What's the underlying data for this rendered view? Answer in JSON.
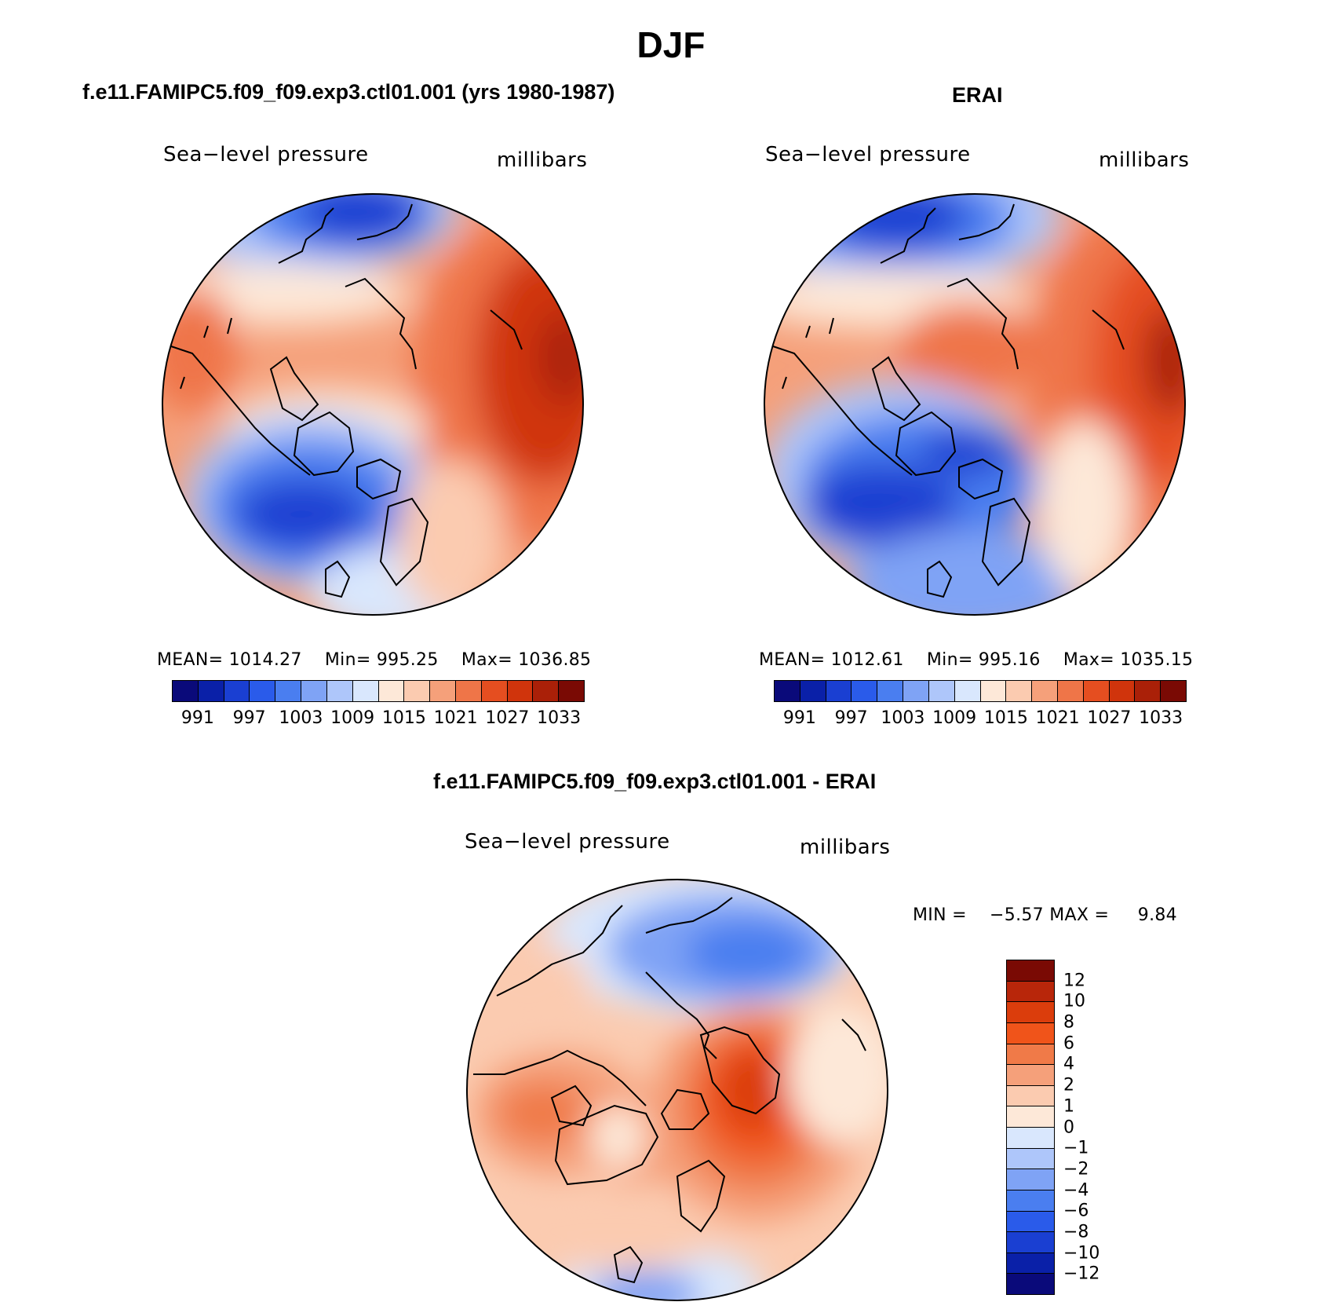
{
  "figure": {
    "title": "DJF"
  },
  "panels": {
    "model": {
      "title": "f.e11.FAMIPC5.f09_f09.exp3.ctl01.001 (yrs 1980-1987)",
      "variable": "Sea−level pressure",
      "units": "millibars",
      "stats": {
        "mean_label": "MEAN=",
        "mean": "1014.27",
        "min_label": "Min=",
        "min": "995.25",
        "max_label": "Max=",
        "max": "1036.85"
      }
    },
    "obs": {
      "title": "ERAI",
      "variable": "Sea−level pressure",
      "units": "millibars",
      "stats": {
        "mean_label": "MEAN=",
        "mean": "1012.61",
        "min_label": "Min=",
        "min": "995.16",
        "max_label": "Max=",
        "max": "1035.15"
      }
    },
    "diff": {
      "title": "f.e11.FAMIPC5.f09_f09.exp3.ctl01.001 - ERAI",
      "variable": "Sea−level pressure",
      "units": "millibars",
      "stats": {
        "min_label": "MIN =",
        "min": "−5.57",
        "max_label": "MAX =",
        "max": "9.84"
      }
    }
  },
  "colorbars": {
    "abs": {
      "colors": [
        "#0a0a7a",
        "#0a20a8",
        "#1a3fd2",
        "#2a5bea",
        "#4a7ef0",
        "#7fa3f5",
        "#aec6fa",
        "#d9e7fd",
        "#fde8d8",
        "#fbcbb0",
        "#f5a07a",
        "#ef7548",
        "#e54e20",
        "#d0340c",
        "#aa2008",
        "#7a0a04"
      ],
      "ticks": [
        "991",
        "997",
        "1003",
        "1009",
        "1015",
        "1021",
        "1027",
        "1033"
      ]
    },
    "diff": {
      "colors": [
        "#7a0a04",
        "#b8260a",
        "#db3d0c",
        "#f0541a",
        "#f07a48",
        "#f5a07a",
        "#fbcbb0",
        "#fde8d8",
        "#d9e7fd",
        "#aec6fa",
        "#7fa3f5",
        "#4a7ef0",
        "#2a5bea",
        "#1a3fd2",
        "#0a20a8",
        "#0a0a7a"
      ],
      "ticks": [
        "12",
        "10",
        "8",
        "6",
        "4",
        "2",
        "1",
        "0",
        "−1",
        "−2",
        "−4",
        "−6",
        "−8",
        "−10",
        "−12"
      ]
    }
  }
}
